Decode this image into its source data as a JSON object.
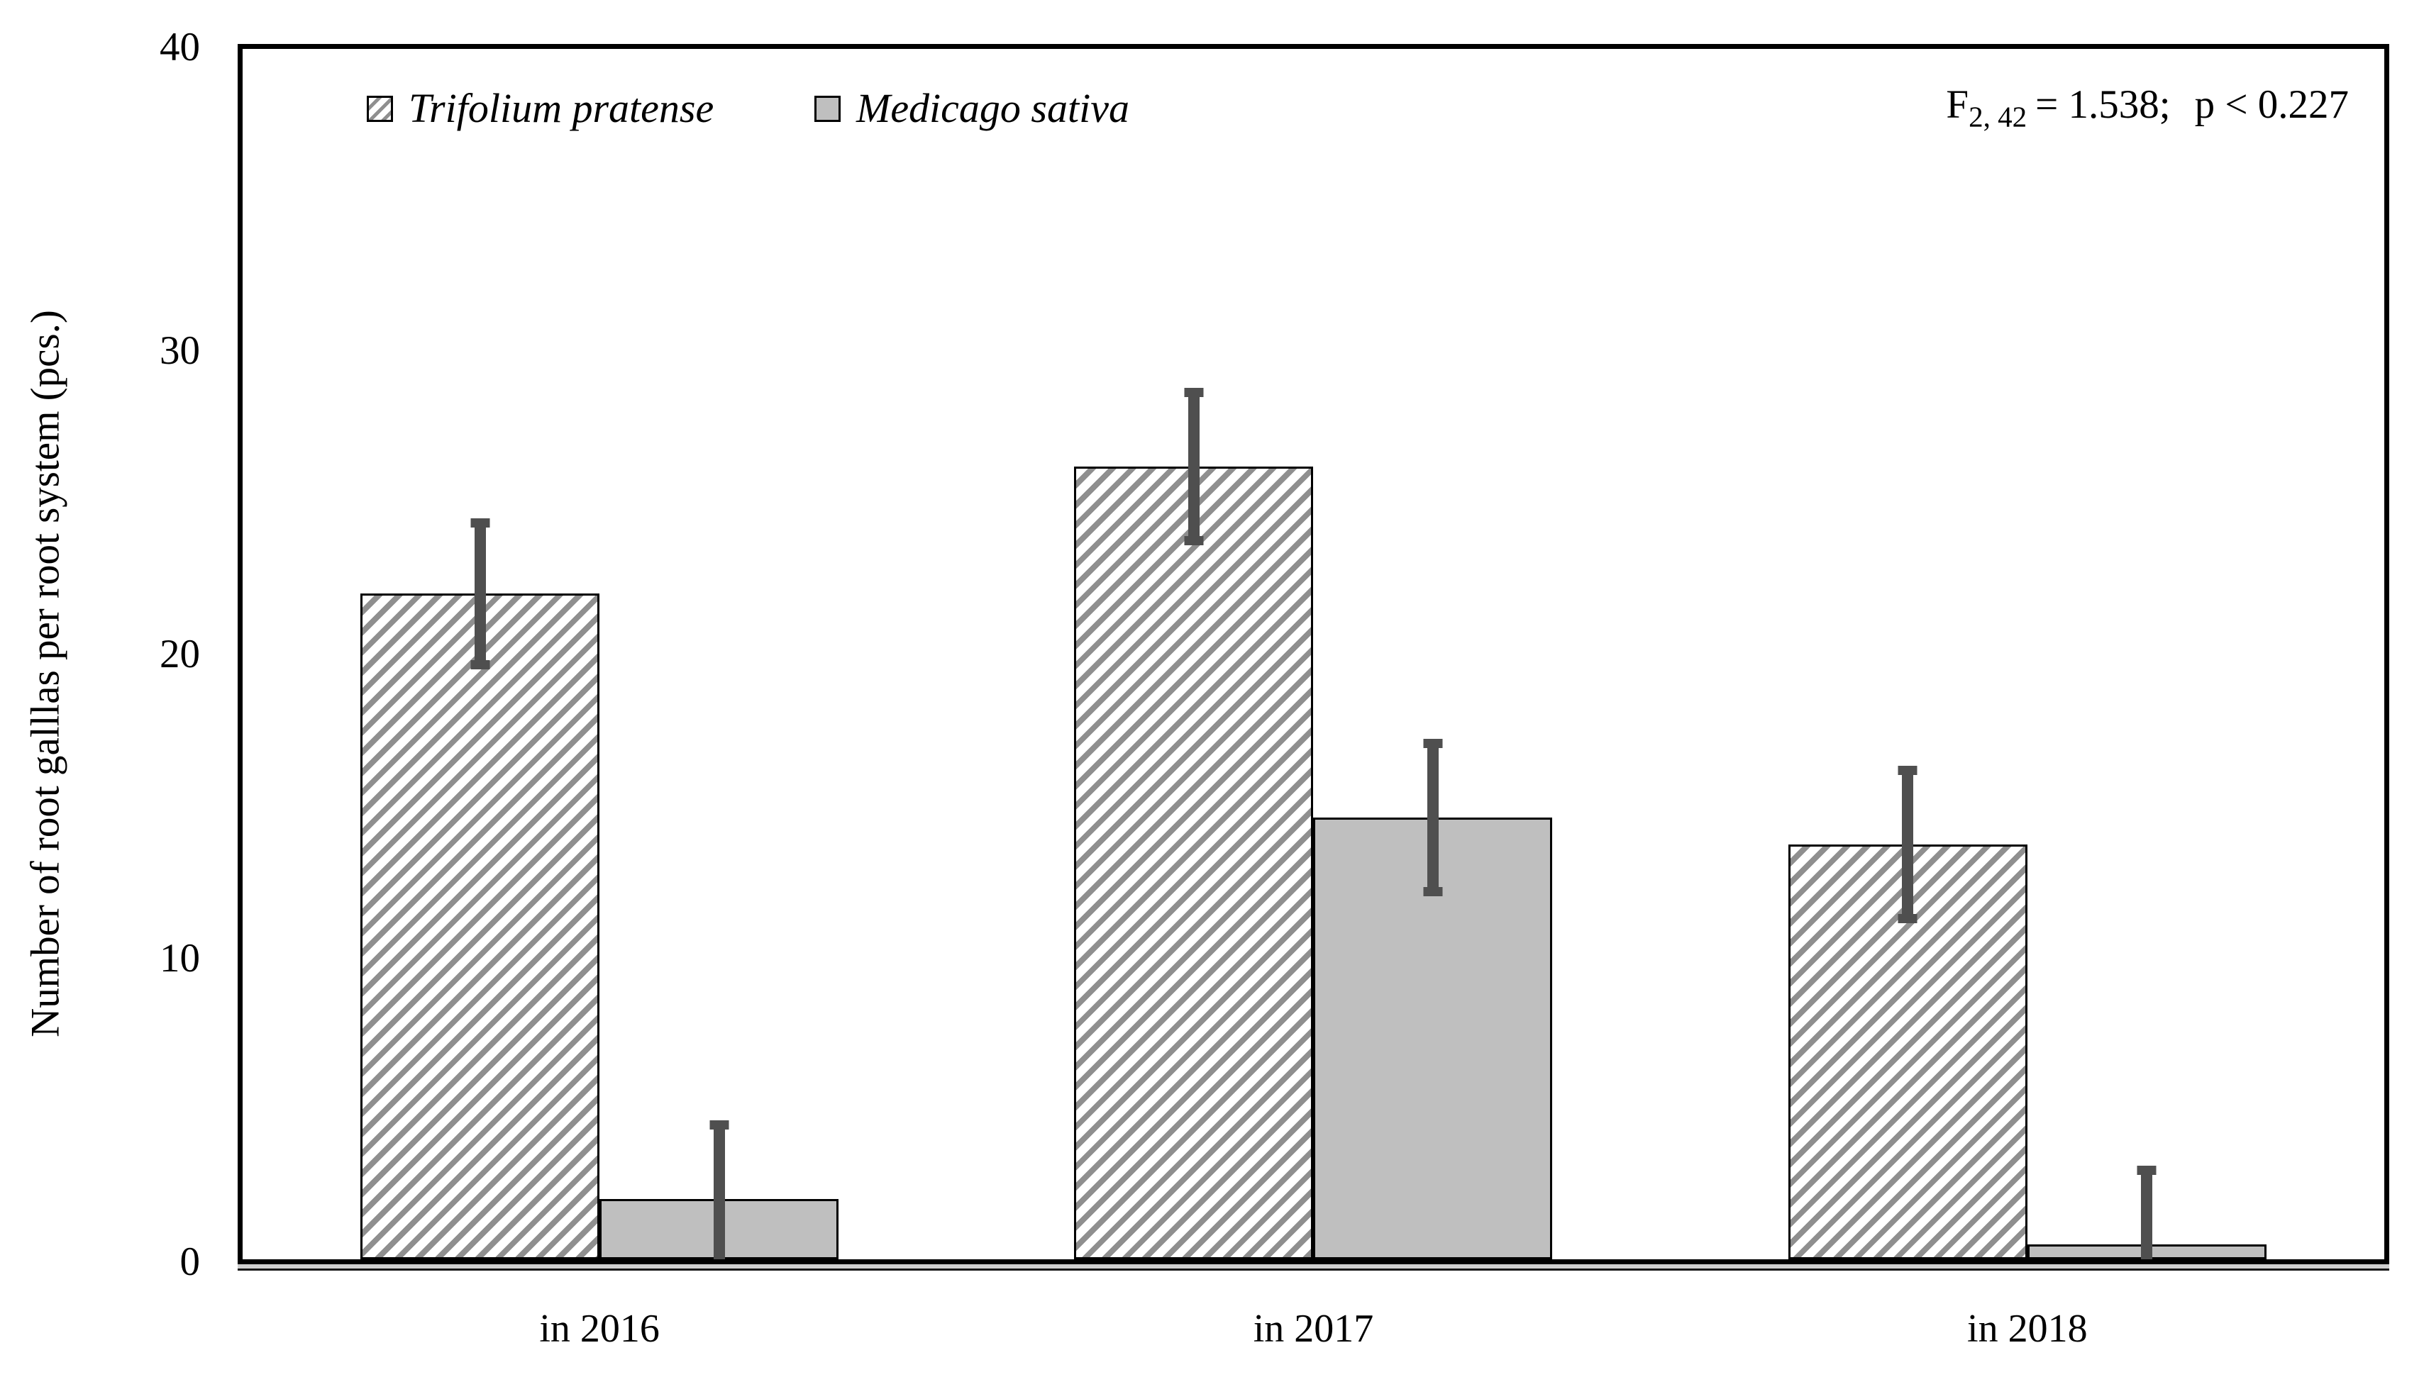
{
  "figure": {
    "y_axis_title": "Number of root galllas per root system (pcs.)",
    "y_tick_labels": [
      "40",
      "30",
      "20",
      "10",
      "0"
    ],
    "x_tick_labels": [
      "in 2016",
      "in 2017",
      "in 2018"
    ],
    "legend": {
      "items": [
        {
          "label": "Trifolium pratense",
          "swatch": "diagonal-hatch"
        },
        {
          "label": "Medicago sativa",
          "swatch": "solid-gray"
        }
      ]
    },
    "annotation": {
      "f_symbol": "F",
      "f_subscript": "2, 42",
      "f_value": "= 1.538;",
      "p_value": "p < 0.227"
    }
  },
  "chart_data": {
    "type": "bar",
    "categories": [
      "in 2016",
      "in 2017",
      "in 2018"
    ],
    "series": [
      {
        "name": "Trifolium pratense",
        "values": [
          22.0,
          26.2,
          13.7
        ],
        "errors": [
          2.5,
          2.6,
          2.6
        ],
        "fill": "white-with-gray-diagonal-hatch"
      },
      {
        "name": "Medicago sativa",
        "values": [
          2.0,
          14.6,
          0.5
        ],
        "errors": [
          2.6,
          2.6,
          2.6
        ],
        "fill": "#bfbfbf"
      }
    ],
    "title": "",
    "xlabel": "",
    "ylabel": "Number of root galllas per root system (pcs.)",
    "ylim": [
      0,
      40
    ],
    "yticks": [
      0,
      10,
      20,
      30,
      40
    ],
    "grid": false,
    "legend_position": "top-left-inside",
    "error_bars": true,
    "annotation": "F2, 42 = 1.538;  p < 0.227"
  },
  "colors": {
    "frame": "#000000",
    "hatch": "#8f8f8f",
    "gray_bar": "#bfbfbf",
    "error_bar": "#4f4f4f",
    "background": "#ffffff"
  }
}
